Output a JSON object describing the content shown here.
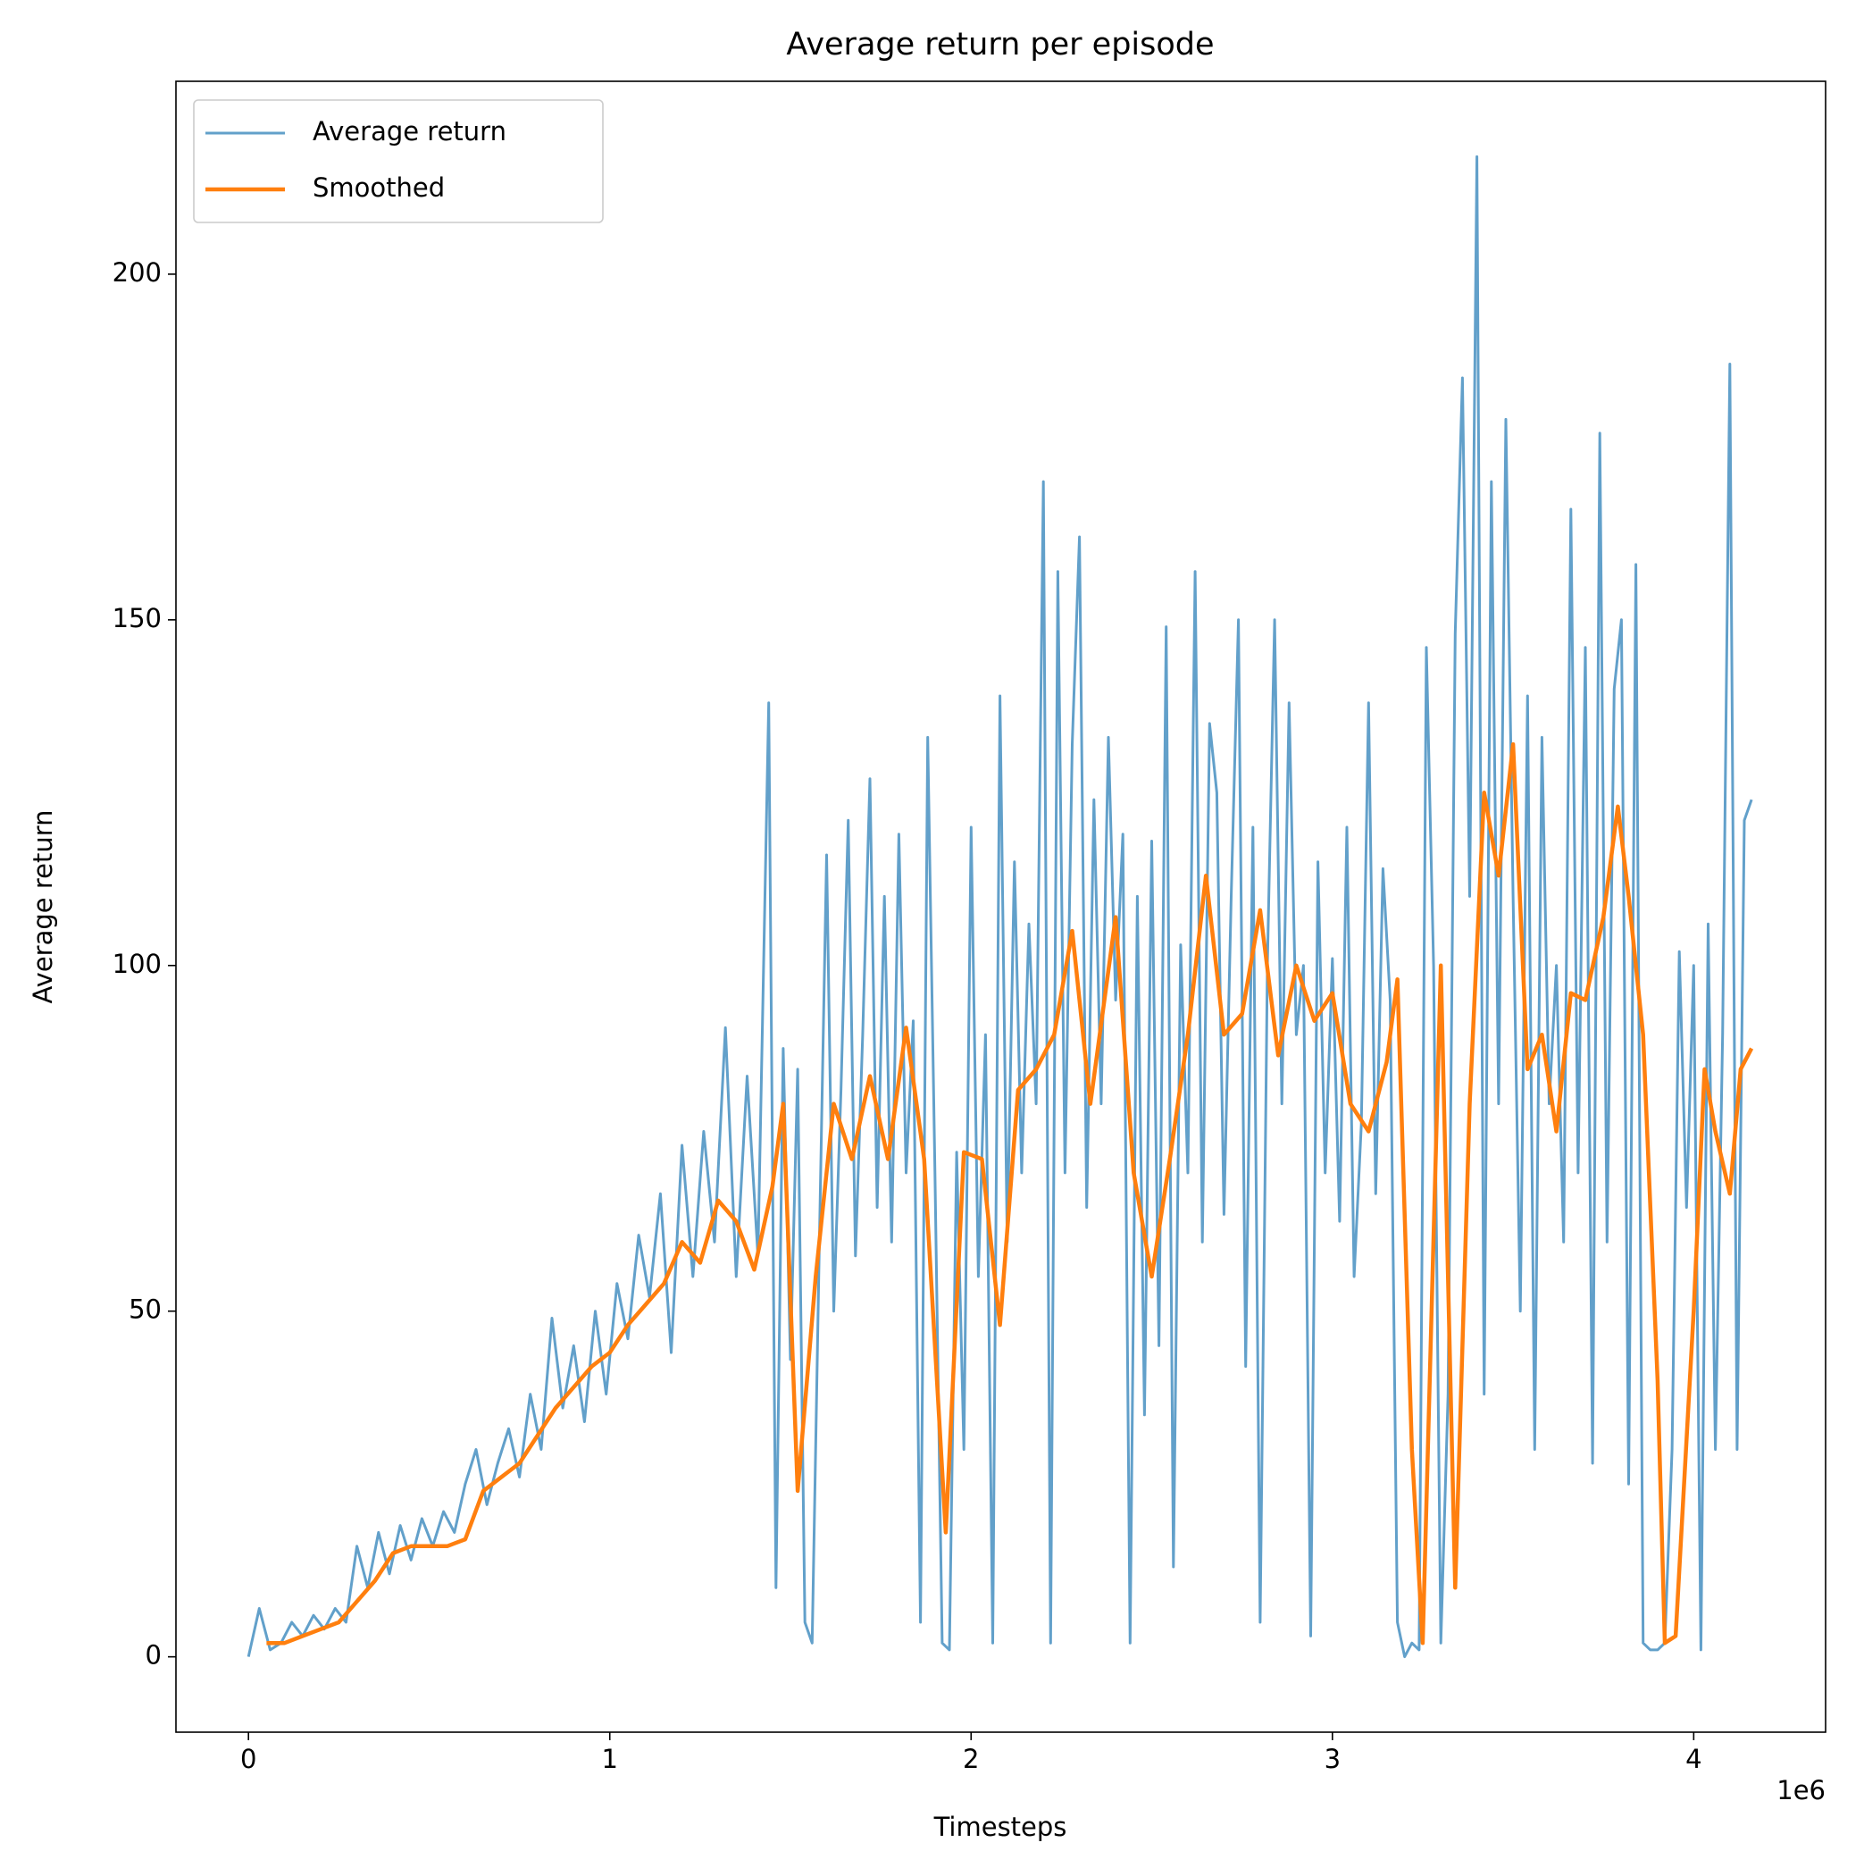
{
  "chart_data": {
    "type": "line",
    "title": "Average return per episode",
    "x_label": "Timesteps",
    "y_label": "Average return",
    "x_offset_label": "1e6",
    "legend": "upper left",
    "grid": false,
    "xlim": [
      -200700,
      4365000
    ],
    "ylim": [
      -10.9,
      227.9
    ],
    "xticks": [
      0,
      {
        "value": 1000000,
        "label": "1"
      },
      {
        "value": 2000000,
        "label": "2"
      },
      {
        "value": 3000000,
        "label": "3"
      },
      {
        "value": 4000000,
        "label": "4"
      }
    ],
    "yticks": [
      0,
      50,
      100,
      150,
      200
    ],
    "series": [
      {
        "name": "Average return",
        "color": "#1f77b4",
        "x": [
          0,
          30000,
          60000,
          90000,
          120000,
          150000,
          180000,
          210000,
          240000,
          270000,
          300000,
          330000,
          360000,
          390000,
          420000,
          450000,
          480000,
          510000,
          540000,
          570000,
          600000,
          630000,
          660000,
          690000,
          720000,
          750000,
          780000,
          810000,
          840000,
          870000,
          900000,
          930000,
          960000,
          990000,
          1020000,
          1050000,
          1080000,
          1110000,
          1140000,
          1170000,
          1200000,
          1230000,
          1260000,
          1290000,
          1320000,
          1350000,
          1380000,
          1410000,
          1440000,
          1460000,
          1480000,
          1500000,
          1520000,
          1540000,
          1560000,
          1580000,
          1600000,
          1620000,
          1640000,
          1660000,
          1680000,
          1700000,
          1720000,
          1740000,
          1760000,
          1780000,
          1800000,
          1820000,
          1840000,
          1860000,
          1880000,
          1900000,
          1920000,
          1940000,
          1960000,
          1980000,
          2000000,
          2020000,
          2040000,
          2060000,
          2080000,
          2100000,
          2120000,
          2140000,
          2160000,
          2180000,
          2200000,
          2220000,
          2240000,
          2260000,
          2280000,
          2300000,
          2320000,
          2340000,
          2360000,
          2380000,
          2400000,
          2420000,
          2440000,
          2460000,
          2480000,
          2500000,
          2520000,
          2540000,
          2560000,
          2580000,
          2600000,
          2620000,
          2640000,
          2660000,
          2680000,
          2700000,
          2720000,
          2740000,
          2760000,
          2780000,
          2800000,
          2820000,
          2840000,
          2860000,
          2880000,
          2900000,
          2920000,
          2940000,
          2960000,
          2980000,
          3000000,
          3020000,
          3040000,
          3060000,
          3080000,
          3100000,
          3120000,
          3140000,
          3160000,
          3180000,
          3200000,
          3220000,
          3240000,
          3260000,
          3280000,
          3300000,
          3320000,
          3340000,
          3360000,
          3380000,
          3400000,
          3420000,
          3440000,
          3460000,
          3480000,
          3500000,
          3520000,
          3540000,
          3560000,
          3580000,
          3600000,
          3620000,
          3640000,
          3660000,
          3680000,
          3700000,
          3720000,
          3740000,
          3760000,
          3780000,
          3800000,
          3820000,
          3840000,
          3860000,
          3880000,
          3900000,
          3920000,
          3940000,
          3960000,
          3980000,
          4000000,
          4020000,
          4040000,
          4060000,
          4080000,
          4100000,
          4120000,
          4140000,
          4160000
        ],
        "values": [
          0,
          7,
          1,
          2,
          5,
          3,
          6,
          4,
          7,
          5,
          16,
          10,
          18,
          12,
          19,
          14,
          20,
          16,
          21,
          18,
          25,
          30,
          22,
          28,
          33,
          26,
          38,
          30,
          49,
          36,
          45,
          34,
          50,
          38,
          54,
          46,
          61,
          52,
          67,
          44,
          74,
          55,
          76,
          60,
          91,
          55,
          84,
          58,
          138,
          10,
          88,
          43,
          85,
          5,
          2,
          60,
          116,
          50,
          82,
          121,
          58,
          90,
          127,
          65,
          110,
          60,
          119,
          70,
          92,
          5,
          133,
          70,
          2,
          1,
          73,
          30,
          120,
          55,
          90,
          2,
          139,
          60,
          115,
          70,
          106,
          80,
          170,
          2,
          157,
          70,
          132,
          162,
          65,
          124,
          80,
          133,
          95,
          119,
          2,
          110,
          35,
          118,
          45,
          149,
          13,
          103,
          70,
          157,
          60,
          135,
          125,
          64,
          110,
          150,
          42,
          120,
          5,
          100,
          150,
          80,
          138,
          90,
          100,
          3,
          115,
          70,
          101,
          63,
          120,
          55,
          77,
          138,
          67,
          114,
          95,
          5,
          0,
          2,
          1,
          146,
          100,
          2,
          38,
          148,
          185,
          110,
          217,
          38,
          170,
          80,
          179,
          110,
          50,
          139,
          30,
          133,
          80,
          100,
          60,
          166,
          70,
          146,
          28,
          177,
          60,
          140,
          150,
          25,
          158,
          2,
          1,
          1,
          2,
          30,
          102,
          65,
          100,
          1,
          106,
          30,
          90,
          187,
          30,
          121,
          124
        ]
      },
      {
        "name": "Smoothed",
        "color": "#ff7f0e",
        "x": [
          50000,
          100000,
          150000,
          200000,
          250000,
          300000,
          350000,
          400000,
          450000,
          500000,
          550000,
          600000,
          650000,
          700000,
          750000,
          800000,
          850000,
          900000,
          950000,
          1000000,
          1050000,
          1100000,
          1150000,
          1200000,
          1250000,
          1300000,
          1350000,
          1400000,
          1450000,
          1480000,
          1520000,
          1570000,
          1620000,
          1670000,
          1720000,
          1770000,
          1820000,
          1870000,
          1930000,
          1980000,
          2030000,
          2080000,
          2130000,
          2180000,
          2230000,
          2280000,
          2330000,
          2400000,
          2450000,
          2500000,
          2550000,
          2600000,
          2650000,
          2700000,
          2750000,
          2800000,
          2850000,
          2900000,
          2950000,
          3000000,
          3050000,
          3100000,
          3150000,
          3180000,
          3220000,
          3250000,
          3300000,
          3340000,
          3380000,
          3420000,
          3460000,
          3500000,
          3540000,
          3580000,
          3620000,
          3660000,
          3700000,
          3750000,
          3790000,
          3820000,
          3860000,
          3900000,
          3920000,
          3950000,
          4000000,
          4030000,
          4060000,
          4100000,
          4130000,
          4160000
        ],
        "values": [
          2,
          2,
          3,
          4,
          5,
          8,
          11,
          15,
          16,
          16,
          16,
          17,
          24,
          26,
          28,
          32,
          36,
          39,
          42,
          44,
          48,
          51,
          54,
          60,
          57,
          66,
          63,
          56,
          68,
          80,
          24,
          55,
          80,
          72,
          84,
          72,
          91,
          72,
          18,
          73,
          72,
          48,
          82,
          85,
          90,
          105,
          80,
          107,
          70,
          55,
          72,
          90,
          113,
          90,
          93,
          108,
          87,
          100,
          92,
          96,
          80,
          76,
          86,
          98,
          30,
          2,
          100,
          10,
          80,
          125,
          113,
          132,
          85,
          90,
          76,
          96,
          95,
          107,
          123,
          110,
          90,
          40,
          2,
          3,
          50,
          85,
          76,
          67,
          85,
          88
        ]
      }
    ]
  }
}
